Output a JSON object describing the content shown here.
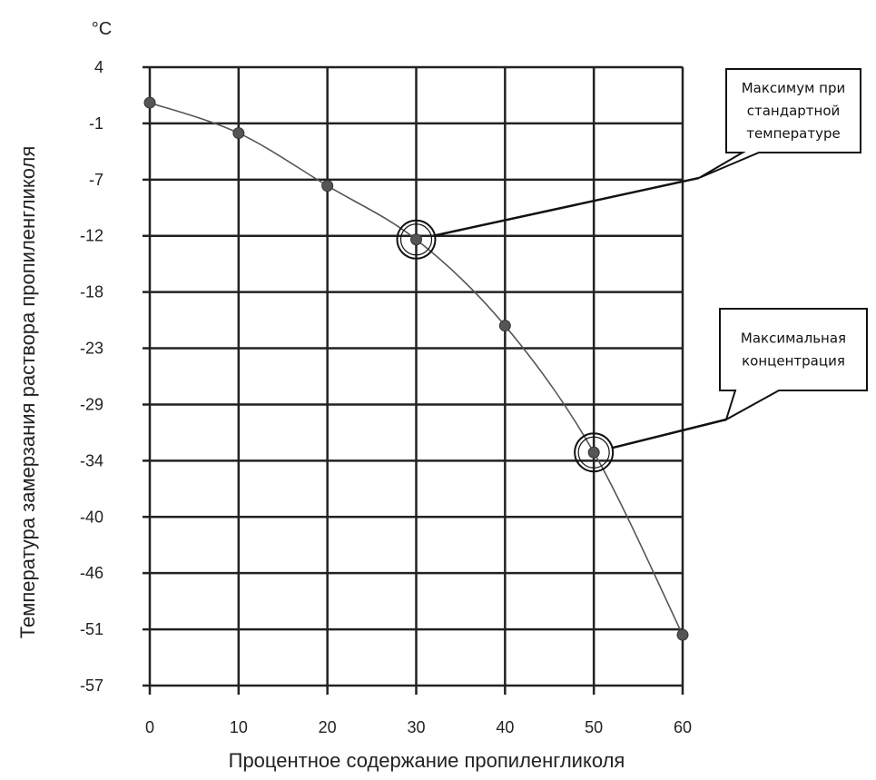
{
  "chart_data": {
    "type": "line",
    "unit": "°C",
    "xlabel": "Процентное содержание пропиленгликоля",
    "ylabel": "Температура замерзания раствора пропиленгликоля",
    "x_ticks": [
      "0",
      "10",
      "20",
      "30",
      "40",
      "50",
      "60"
    ],
    "y_ticks": [
      "4",
      "-1",
      "-7",
      "-12",
      "-18",
      "-23",
      "-29",
      "-34",
      "-40",
      "-46",
      "-51",
      "-57"
    ],
    "grid": true,
    "series": [
      {
        "x": [
          0,
          10,
          20,
          30,
          40,
          50,
          60
        ],
        "y": [
          0.5,
          -2.5,
          -7.7,
          -13,
          -21.5,
          -34,
          -52
        ],
        "note": "y given in axis units; tick labels are spaced evenly (~5.5 °C per gridline)"
      }
    ],
    "annotations": [
      {
        "lines": [
          "Максимум при",
          "стандартной",
          "температуре"
        ],
        "target": {
          "x": 30,
          "y": -13
        }
      },
      {
        "lines": [
          "Максимальная",
          "концентрация"
        ],
        "target": {
          "x": 50,
          "y": -34
        }
      }
    ]
  }
}
